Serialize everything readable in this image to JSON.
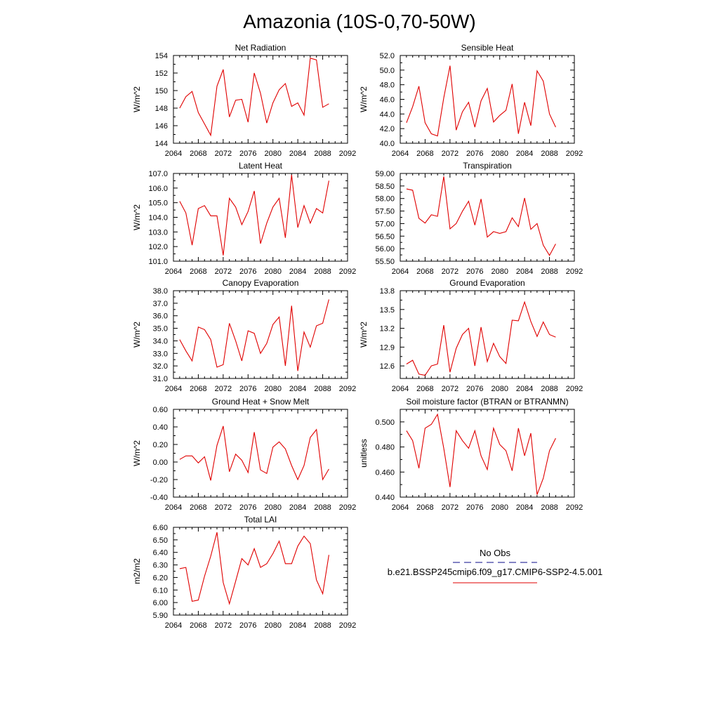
{
  "figure": {
    "title": "Amazonia (10S-0,70-50W)",
    "legend": {
      "entries": [
        {
          "label": "No Obs",
          "color": "#3a3aa0",
          "style": "dashed"
        },
        {
          "label": "b.e21.BSSP245cmip6.f09_g17.CMIP6-SSP2-4.5.001",
          "color": "#e00000",
          "style": "solid"
        }
      ]
    }
  },
  "chart_data": [
    {
      "type": "line",
      "title": "Net Radiation",
      "ylabel": "W/m^2",
      "xlim": [
        2064,
        2092
      ],
      "ylim": [
        144,
        154
      ],
      "xticks": [
        2064,
        2068,
        2072,
        2076,
        2080,
        2084,
        2088,
        2092
      ],
      "yticks": [
        144,
        146,
        148,
        150,
        152,
        154
      ],
      "ytick_labels": [
        "144",
        "146",
        "148",
        "150",
        "152",
        "154"
      ],
      "series": [
        {
          "color": "#e00000",
          "x": [
            2065,
            2066,
            2067,
            2068,
            2069,
            2070,
            2071,
            2072,
            2073,
            2074,
            2075,
            2076,
            2077,
            2078,
            2079,
            2080,
            2081,
            2082,
            2083,
            2084,
            2085,
            2086,
            2087,
            2088,
            2089
          ],
          "y": [
            148.0,
            149.3,
            149.9,
            147.5,
            146.2,
            144.9,
            150.5,
            152.4,
            147.0,
            148.9,
            149.0,
            146.4,
            152.0,
            149.7,
            146.3,
            148.6,
            150.1,
            150.8,
            148.2,
            148.6,
            147.2,
            153.7,
            153.5,
            148.1,
            148.5
          ]
        }
      ]
    },
    {
      "type": "line",
      "title": "Sensible Heat",
      "ylabel": "W/m^2",
      "xlim": [
        2064,
        2092
      ],
      "ylim": [
        40,
        52
      ],
      "xticks": [
        2064,
        2068,
        2072,
        2076,
        2080,
        2084,
        2088,
        2092
      ],
      "yticks": [
        40,
        42,
        44,
        46,
        48,
        50,
        52
      ],
      "ytick_labels": [
        "40.0",
        "42.0",
        "44.0",
        "46.0",
        "48.0",
        "50.0",
        "52.0"
      ],
      "series": [
        {
          "color": "#e00000",
          "x": [
            2065,
            2066,
            2067,
            2068,
            2069,
            2070,
            2071,
            2072,
            2073,
            2074,
            2075,
            2076,
            2077,
            2078,
            2079,
            2080,
            2081,
            2082,
            2083,
            2084,
            2085,
            2086,
            2087,
            2088,
            2089
          ],
          "y": [
            42.8,
            45.0,
            47.8,
            42.8,
            41.3,
            41.0,
            46.2,
            50.6,
            41.8,
            44.3,
            45.6,
            42.2,
            45.8,
            47.5,
            42.9,
            43.8,
            44.5,
            48.1,
            41.3,
            45.6,
            42.4,
            49.9,
            48.5,
            44.0,
            42.2
          ]
        }
      ]
    },
    {
      "type": "line",
      "title": "Latent Heat",
      "ylabel": "W/m^2",
      "xlim": [
        2064,
        2092
      ],
      "ylim": [
        101,
        107
      ],
      "xticks": [
        2064,
        2068,
        2072,
        2076,
        2080,
        2084,
        2088,
        2092
      ],
      "yticks": [
        101,
        102,
        103,
        104,
        105,
        106,
        107
      ],
      "ytick_labels": [
        "101.0",
        "102.0",
        "103.0",
        "104.0",
        "105.0",
        "106.0",
        "107.0"
      ],
      "series": [
        {
          "color": "#e00000",
          "x": [
            2065,
            2066,
            2067,
            2068,
            2069,
            2070,
            2071,
            2072,
            2073,
            2074,
            2075,
            2076,
            2077,
            2078,
            2079,
            2080,
            2081,
            2082,
            2083,
            2084,
            2085,
            2086,
            2087,
            2088,
            2089
          ],
          "y": [
            105.1,
            104.3,
            102.1,
            104.6,
            104.8,
            104.1,
            104.1,
            101.4,
            105.3,
            104.7,
            103.5,
            104.4,
            105.8,
            102.2,
            103.6,
            104.7,
            105.3,
            102.6,
            106.9,
            103.3,
            104.8,
            103.6,
            104.6,
            104.3,
            106.5
          ]
        }
      ]
    },
    {
      "type": "line",
      "title": "Transpiration",
      "ylabel": "",
      "xlim": [
        2064,
        2092
      ],
      "ylim": [
        55.5,
        59.0
      ],
      "xticks": [
        2064,
        2068,
        2072,
        2076,
        2080,
        2084,
        2088,
        2092
      ],
      "yticks": [
        55.5,
        56.0,
        56.5,
        57.0,
        57.5,
        58.0,
        58.5,
        59.0
      ],
      "ytick_labels": [
        "55.50",
        "56.00",
        "56.50",
        "57.00",
        "57.50",
        "58.00",
        "58.50",
        "59.00"
      ],
      "series": [
        {
          "color": "#e00000",
          "x": [
            2065,
            2066,
            2067,
            2068,
            2069,
            2070,
            2071,
            2072,
            2073,
            2074,
            2075,
            2076,
            2077,
            2078,
            2079,
            2080,
            2081,
            2082,
            2083,
            2084,
            2085,
            2086,
            2087,
            2088,
            2089
          ],
          "y": [
            58.38,
            58.33,
            57.21,
            57.02,
            57.35,
            57.29,
            58.88,
            56.79,
            57.0,
            57.49,
            57.89,
            56.94,
            57.98,
            56.46,
            56.68,
            56.61,
            56.68,
            57.23,
            56.88,
            58.02,
            56.77,
            57.0,
            56.14,
            55.73,
            56.19
          ]
        }
      ]
    },
    {
      "type": "line",
      "title": "Canopy Evaporation",
      "ylabel": "W/m^2",
      "xlim": [
        2064,
        2092
      ],
      "ylim": [
        31,
        38
      ],
      "xticks": [
        2064,
        2068,
        2072,
        2076,
        2080,
        2084,
        2088,
        2092
      ],
      "yticks": [
        31,
        32,
        33,
        34,
        35,
        36,
        37,
        38
      ],
      "ytick_labels": [
        "31.0",
        "32.0",
        "33.0",
        "34.0",
        "35.0",
        "36.0",
        "37.0",
        "38.0"
      ],
      "series": [
        {
          "color": "#e00000",
          "x": [
            2065,
            2066,
            2067,
            2068,
            2069,
            2070,
            2071,
            2072,
            2073,
            2074,
            2075,
            2076,
            2077,
            2078,
            2079,
            2080,
            2081,
            2082,
            2083,
            2084,
            2085,
            2086,
            2087,
            2088,
            2089
          ],
          "y": [
            34.1,
            33.2,
            32.4,
            35.1,
            34.9,
            34.1,
            31.9,
            32.1,
            35.4,
            34.0,
            32.4,
            34.8,
            34.6,
            33.0,
            33.8,
            35.3,
            35.9,
            32.0,
            36.8,
            31.6,
            34.7,
            33.5,
            35.2,
            35.4,
            37.3
          ]
        }
      ]
    },
    {
      "type": "line",
      "title": "Ground Evaporation",
      "ylabel": "W/m^2",
      "xlim": [
        2064,
        2092
      ],
      "ylim": [
        12.4,
        13.8
      ],
      "xticks": [
        2064,
        2068,
        2072,
        2076,
        2080,
        2084,
        2088,
        2092
      ],
      "yticks": [
        12.6,
        12.9,
        13.2,
        13.5,
        13.8
      ],
      "ytick_labels": [
        "12.6",
        "12.9",
        "13.2",
        "13.5",
        "13.8"
      ],
      "series": [
        {
          "color": "#e00000",
          "x": [
            2065,
            2066,
            2067,
            2068,
            2069,
            2070,
            2071,
            2072,
            2073,
            2074,
            2075,
            2076,
            2077,
            2078,
            2079,
            2080,
            2081,
            2082,
            2083,
            2084,
            2085,
            2086,
            2087,
            2088,
            2089
          ],
          "y": [
            12.63,
            12.69,
            12.47,
            12.45,
            12.6,
            12.63,
            13.25,
            12.5,
            12.88,
            13.1,
            13.2,
            12.6,
            13.22,
            12.67,
            12.96,
            12.75,
            12.64,
            13.33,
            13.32,
            13.62,
            13.31,
            13.07,
            13.3,
            13.1,
            13.06
          ]
        }
      ]
    },
    {
      "type": "line",
      "title": "Ground Heat + Snow Melt",
      "ylabel": "W/m^2",
      "xlim": [
        2064,
        2092
      ],
      "ylim": [
        -0.4,
        0.6
      ],
      "xticks": [
        2064,
        2068,
        2072,
        2076,
        2080,
        2084,
        2088,
        2092
      ],
      "yticks": [
        -0.4,
        -0.2,
        0.0,
        0.2,
        0.4,
        0.6
      ],
      "ytick_labels": [
        "-0.40",
        "-0.20",
        "0.00",
        "0.20",
        "0.40",
        "0.60"
      ],
      "series": [
        {
          "color": "#e00000",
          "x": [
            2065,
            2066,
            2067,
            2068,
            2069,
            2070,
            2071,
            2072,
            2073,
            2074,
            2075,
            2076,
            2077,
            2078,
            2079,
            2080,
            2081,
            2082,
            2083,
            2084,
            2085,
            2086,
            2087,
            2088,
            2089
          ],
          "y": [
            0.03,
            0.07,
            0.07,
            -0.01,
            0.06,
            -0.21,
            0.19,
            0.41,
            -0.11,
            0.09,
            0.02,
            -0.12,
            0.34,
            -0.09,
            -0.13,
            0.17,
            0.23,
            0.15,
            -0.04,
            -0.2,
            -0.04,
            0.28,
            0.37,
            -0.2,
            -0.08
          ]
        }
      ]
    },
    {
      "type": "line",
      "title": "Soil moisture factor (BTRAN or BTRANMN)",
      "ylabel": "unitless",
      "xlim": [
        2064,
        2092
      ],
      "ylim": [
        0.44,
        0.51
      ],
      "xticks": [
        2064,
        2068,
        2072,
        2076,
        2080,
        2084,
        2088,
        2092
      ],
      "yticks": [
        0.44,
        0.46,
        0.48,
        0.5
      ],
      "ytick_labels": [
        "0.440",
        "0.460",
        "0.480",
        "0.500"
      ],
      "series": [
        {
          "color": "#e00000",
          "x": [
            2065,
            2066,
            2067,
            2068,
            2069,
            2070,
            2071,
            2072,
            2073,
            2074,
            2075,
            2076,
            2077,
            2078,
            2079,
            2080,
            2081,
            2082,
            2083,
            2084,
            2085,
            2086,
            2087,
            2088,
            2089
          ],
          "y": [
            0.493,
            0.485,
            0.463,
            0.495,
            0.498,
            0.506,
            0.479,
            0.448,
            0.493,
            0.485,
            0.479,
            0.493,
            0.473,
            0.462,
            0.495,
            0.482,
            0.477,
            0.461,
            0.495,
            0.473,
            0.491,
            0.442,
            0.455,
            0.477,
            0.487
          ]
        }
      ]
    },
    {
      "type": "line",
      "title": "Total LAI",
      "ylabel": "m2/m2",
      "xlim": [
        2064,
        2092
      ],
      "ylim": [
        5.9,
        6.6
      ],
      "xticks": [
        2064,
        2068,
        2072,
        2076,
        2080,
        2084,
        2088,
        2092
      ],
      "yticks": [
        5.9,
        6.0,
        6.1,
        6.2,
        6.3,
        6.4,
        6.5,
        6.6
      ],
      "ytick_labels": [
        "5.90",
        "6.00",
        "6.10",
        "6.20",
        "6.30",
        "6.40",
        "6.50",
        "6.60"
      ],
      "series": [
        {
          "color": "#e00000",
          "x": [
            2065,
            2066,
            2067,
            2068,
            2069,
            2070,
            2071,
            2072,
            2073,
            2074,
            2075,
            2076,
            2077,
            2078,
            2079,
            2080,
            2081,
            2082,
            2083,
            2084,
            2085,
            2086,
            2087,
            2088,
            2089
          ],
          "y": [
            6.27,
            6.28,
            6.01,
            6.02,
            6.21,
            6.37,
            6.56,
            6.16,
            5.99,
            6.17,
            6.35,
            6.3,
            6.43,
            6.28,
            6.31,
            6.39,
            6.49,
            6.31,
            6.31,
            6.45,
            6.53,
            6.47,
            6.18,
            6.07,
            6.38
          ]
        }
      ]
    }
  ]
}
